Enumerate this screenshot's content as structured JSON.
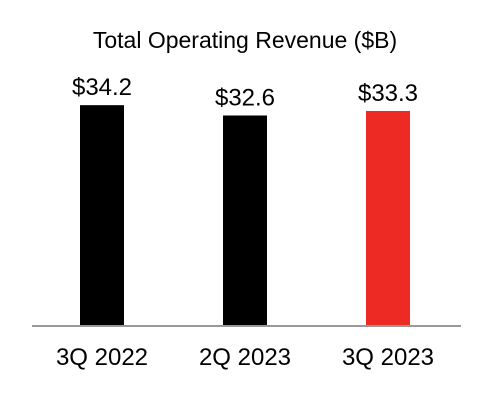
{
  "chart_data": {
    "type": "bar",
    "title": "Total Operating Revenue ($B)",
    "categories": [
      "3Q 2022",
      "2Q 2023",
      "3Q 2023"
    ],
    "values": [
      34.2,
      32.6,
      33.3
    ],
    "value_labels": [
      "$34.2",
      "$32.6",
      "$33.3"
    ],
    "bar_colors": [
      "#000000",
      "#000000",
      "#ee2a24"
    ],
    "axis_color": "#999999",
    "ylim": [
      0,
      35
    ],
    "grid": false,
    "xlabel": "",
    "ylabel": ""
  }
}
